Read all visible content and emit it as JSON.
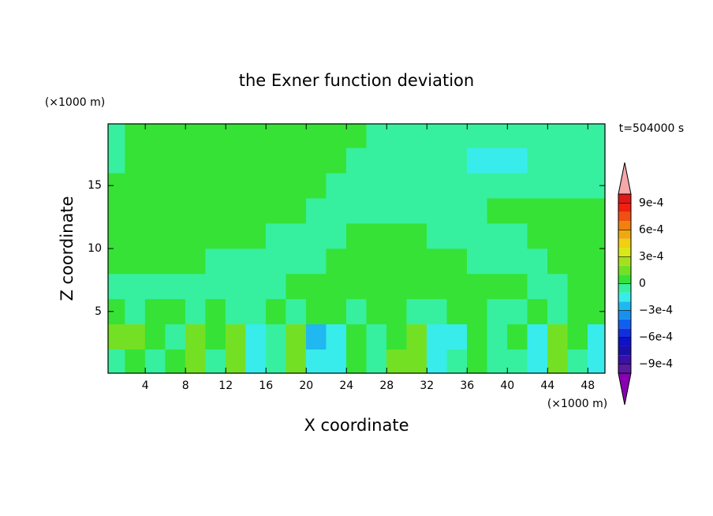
{
  "chart_data": {
    "type": "contour",
    "title": "the Exner function deviation",
    "xlabel": "X coordinate",
    "ylabel": "Z coordinate",
    "x_unit": "(×1000 m)",
    "y_unit": "(×1000 m)",
    "annotation": "t=504000 s",
    "xlim": [
      0.3,
      49.7
    ],
    "ylim": [
      0.1,
      19.9
    ],
    "xticks": [
      4,
      8,
      12,
      16,
      20,
      24,
      28,
      32,
      36,
      40,
      44,
      48
    ],
    "yticks": [
      5,
      10,
      15
    ],
    "x": [
      1,
      3,
      5,
      7,
      9,
      11,
      13,
      15,
      17,
      19,
      21,
      23,
      25,
      27,
      29,
      31,
      33,
      35,
      37,
      39,
      41,
      43,
      45,
      47,
      49
    ],
    "y": [
      1,
      3,
      5,
      7,
      9,
      11,
      13,
      15,
      17,
      19
    ],
    "z": [
      [
        -5e-05,
        5e-05,
        -5e-05,
        5e-05,
        0.00015,
        -5e-05,
        0.00015,
        -0.00015,
        -5e-05,
        0.00015,
        -0.00015,
        -0.00015,
        5e-05,
        -5e-05,
        0.00015,
        0.00015,
        -0.00015,
        -5e-05,
        5e-05,
        -5e-05,
        -5e-05,
        -0.00015,
        0.00015,
        -5e-05,
        -0.00015
      ],
      [
        0.00015,
        0.00015,
        5e-05,
        -5e-05,
        0.00015,
        5e-05,
        0.00015,
        -0.00015,
        -5e-05,
        0.00015,
        -0.00025,
        -0.00015,
        5e-05,
        -5e-05,
        5e-05,
        0.00015,
        -0.00015,
        -0.00015,
        5e-05,
        -5e-05,
        5e-05,
        -0.00015,
        0.00015,
        5e-05,
        -0.00015
      ],
      [
        5e-05,
        -5e-05,
        5e-05,
        5e-05,
        -5e-05,
        5e-05,
        -5e-05,
        -5e-05,
        5e-05,
        -5e-05,
        5e-05,
        5e-05,
        -5e-05,
        5e-05,
        5e-05,
        -5e-05,
        -5e-05,
        5e-05,
        5e-05,
        -5e-05,
        -5e-05,
        5e-05,
        -5e-05,
        5e-05,
        5e-05
      ],
      [
        -5e-05,
        -5e-05,
        -5e-05,
        -5e-05,
        -5e-05,
        -5e-05,
        -5e-05,
        -5e-05,
        -5e-05,
        5e-05,
        5e-05,
        5e-05,
        5e-05,
        5e-05,
        5e-05,
        5e-05,
        5e-05,
        5e-05,
        5e-05,
        5e-05,
        5e-05,
        -5e-05,
        -5e-05,
        5e-05,
        5e-05
      ],
      [
        5e-05,
        5e-05,
        5e-05,
        5e-05,
        5e-05,
        -5e-05,
        -5e-05,
        -5e-05,
        -5e-05,
        -5e-05,
        -5e-05,
        5e-05,
        5e-05,
        5e-05,
        5e-05,
        5e-05,
        5e-05,
        5e-05,
        -5e-05,
        -5e-05,
        -5e-05,
        -5e-05,
        5e-05,
        5e-05,
        5e-05
      ],
      [
        5e-05,
        5e-05,
        5e-05,
        5e-05,
        5e-05,
        5e-05,
        5e-05,
        5e-05,
        -5e-05,
        -5e-05,
        -5e-05,
        -5e-05,
        5e-05,
        5e-05,
        5e-05,
        5e-05,
        -5e-05,
        -5e-05,
        -5e-05,
        -5e-05,
        -5e-05,
        5e-05,
        5e-05,
        5e-05,
        5e-05
      ],
      [
        5e-05,
        5e-05,
        5e-05,
        5e-05,
        5e-05,
        5e-05,
        5e-05,
        5e-05,
        5e-05,
        5e-05,
        -5e-05,
        -5e-05,
        -5e-05,
        -5e-05,
        -5e-05,
        -5e-05,
        -5e-05,
        -5e-05,
        -5e-05,
        5e-05,
        5e-05,
        5e-05,
        5e-05,
        5e-05,
        5e-05
      ],
      [
        5e-05,
        5e-05,
        5e-05,
        5e-05,
        5e-05,
        5e-05,
        5e-05,
        5e-05,
        5e-05,
        5e-05,
        5e-05,
        -5e-05,
        -5e-05,
        -5e-05,
        -5e-05,
        -5e-05,
        -5e-05,
        -5e-05,
        -5e-05,
        -5e-05,
        -5e-05,
        -5e-05,
        -5e-05,
        -5e-05,
        -5e-05
      ],
      [
        -5e-05,
        5e-05,
        5e-05,
        5e-05,
        5e-05,
        5e-05,
        5e-05,
        5e-05,
        5e-05,
        5e-05,
        5e-05,
        5e-05,
        -5e-05,
        -5e-05,
        -5e-05,
        -5e-05,
        -5e-05,
        -5e-05,
        -0.00015,
        -0.00015,
        -0.00015,
        -5e-05,
        -5e-05,
        -5e-05,
        -5e-05
      ],
      [
        -5e-05,
        5e-05,
        5e-05,
        5e-05,
        5e-05,
        5e-05,
        5e-05,
        5e-05,
        5e-05,
        5e-05,
        5e-05,
        5e-05,
        5e-05,
        -5e-05,
        -5e-05,
        -5e-05,
        -5e-05,
        -5e-05,
        -5e-05,
        -5e-05,
        -5e-05,
        -5e-05,
        -5e-05,
        -5e-05,
        -5e-05
      ]
    ],
    "clim": [
      -0.001,
      0.001
    ],
    "colors": [
      "#5a1aa0",
      "#3a10a8",
      "#1a10a8",
      "#1010c8",
      "#1030e0",
      "#1060f0",
      "#1890f0",
      "#20b8f0",
      "#38ecec",
      "#36f0a0",
      "#36e236",
      "#74e024",
      "#a4e020",
      "#d8e818",
      "#f0d010",
      "#f0a810",
      "#f08010",
      "#f05010",
      "#f02010",
      "#e01818"
    ],
    "under_color": "#8800b0",
    "over_color": "#f4a8a8",
    "cticks": [
      {
        "value": 0.0009,
        "label": "9e-4"
      },
      {
        "value": 0.0006,
        "label": "6e-4"
      },
      {
        "value": 0.0003,
        "label": "3e-4"
      },
      0,
      {
        "value": -0.0003,
        "label": "−3e-4"
      },
      {
        "value": -0.0006,
        "label": "−6e-4"
      },
      {
        "value": -0.0009,
        "label": "−9e-4"
      }
    ]
  }
}
